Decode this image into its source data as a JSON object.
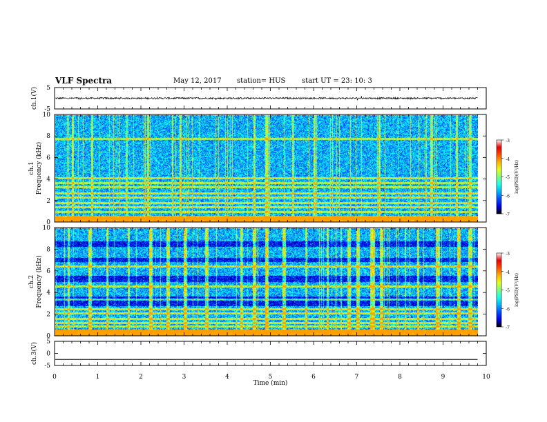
{
  "header": {
    "title": "VLF Spectra",
    "date": "May 12, 2017",
    "station": "station= HUS",
    "start_ut": "start  UT  =   23: 10: 3"
  },
  "chart_data": [
    {
      "type": "line",
      "name": "ch1-voltage",
      "ylabel": "ch.1(V)",
      "ylim": [
        -5,
        5
      ],
      "yticks": [
        "5",
        "-5"
      ],
      "description_values": {
        "baseline": 0.0,
        "noise_amplitude": 0.4
      }
    },
    {
      "type": "heatmap",
      "name": "ch1-spectrogram",
      "ylabel_line1": "ch.1",
      "ylabel_line2": "Frequency (kHz)",
      "ylim": [
        0,
        10
      ],
      "yticks": [
        "0",
        "2",
        "4",
        "6",
        "8",
        "10"
      ],
      "colorbar": {
        "label": "log(PSD)(V²/Hz)",
        "range": [
          -7,
          -3
        ],
        "ticks": [
          "-3",
          "-4",
          "-5",
          "-6",
          "-7"
        ]
      },
      "persistent_lines_khz": [
        0.3,
        0.5,
        1.0,
        1.4,
        1.8,
        2.3,
        2.7,
        3.3,
        3.7,
        4.1,
        7.8
      ]
    },
    {
      "type": "heatmap",
      "name": "ch2-spectrogram",
      "ylabel_line1": "ch.2",
      "ylabel_line2": "Frequency (kHz)",
      "ylim": [
        0,
        10
      ],
      "yticks": [
        "0",
        "2",
        "4",
        "6",
        "8",
        "10"
      ],
      "colorbar": {
        "label": "log(PSD)(V²/Hz)",
        "range": [
          -7,
          -3
        ],
        "ticks": [
          "-3",
          "-4",
          "-5",
          "-6",
          "-7"
        ]
      },
      "persistent_lines_khz": [
        0.4,
        0.9,
        1.2,
        1.6,
        2.1,
        2.5,
        3.4,
        4.6,
        6.5
      ]
    },
    {
      "type": "line",
      "name": "ch3-voltage",
      "ylabel": "ch.3(V)",
      "ylim": [
        -5,
        5
      ],
      "yticks": [
        "5",
        "0",
        "-5"
      ],
      "description_values": {
        "baseline": -2.5
      }
    }
  ],
  "x_axis": {
    "label": "Time (min)",
    "range": [
      0,
      10
    ],
    "ticks": [
      "0",
      "1",
      "2",
      "3",
      "4",
      "5",
      "6",
      "7",
      "8",
      "9",
      "10"
    ],
    "data_end_min": 9.8
  }
}
